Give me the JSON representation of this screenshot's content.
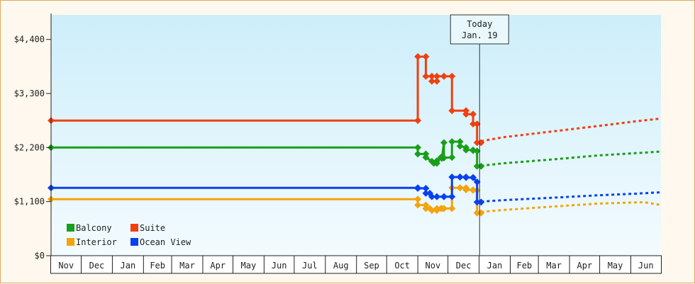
{
  "chart_data": {
    "type": "line",
    "title": "",
    "xlabel": "",
    "ylabel": "",
    "ylim": [
      0,
      4900
    ],
    "y_ticks": [
      {
        "value": 0,
        "label": "$0"
      },
      {
        "value": 1100,
        "label": "$1,100"
      },
      {
        "value": 2200,
        "label": "$2,200"
      },
      {
        "value": 3300,
        "label": "$3,300"
      },
      {
        "value": 4400,
        "label": "$4,400"
      }
    ],
    "x_months": [
      "Nov",
      "Dec",
      "Jan",
      "Feb",
      "Mar",
      "Apr",
      "May",
      "Jun",
      "Jul",
      "Aug",
      "Sep",
      "Oct",
      "Nov",
      "Dec",
      "Jan",
      "Feb",
      "Mar",
      "Apr",
      "May",
      "Jun"
    ],
    "month_units": [
      0,
      30,
      61,
      92,
      120,
      151,
      181,
      212,
      242,
      273,
      304,
      334,
      365,
      395,
      426,
      457,
      485,
      516,
      546,
      577,
      607
    ],
    "grid": false,
    "legend_position": "bottom-left",
    "today": {
      "day": 426.5,
      "line1": "Today",
      "line2": "Jan. 19"
    },
    "colors": {
      "plot_top": "#cdeefa",
      "plot_bottom": "#f3fbfe",
      "frame_bg": "#fff8ee",
      "frame_border": "#e0a860",
      "axis": "#222222"
    },
    "series": [
      {
        "name": "Balcony",
        "color": "#1a9e1a",
        "points": [
          [
            0,
            2200
          ],
          [
            365,
            2200
          ],
          [
            365,
            2070
          ],
          [
            373,
            2070
          ],
          [
            373,
            2000
          ],
          [
            379,
            1920
          ],
          [
            381,
            1880
          ],
          [
            384,
            1880
          ],
          [
            384,
            1930
          ],
          [
            388,
            2000
          ],
          [
            389,
            1980
          ],
          [
            391,
            2300
          ],
          [
            391,
            1990
          ],
          [
            399,
            2000
          ],
          [
            399,
            2320
          ],
          [
            407,
            2320
          ],
          [
            407,
            2230
          ],
          [
            413,
            2200
          ],
          [
            413,
            2150
          ],
          [
            420,
            2150
          ],
          [
            420,
            2140
          ],
          [
            424,
            2130
          ],
          [
            424,
            1820
          ],
          [
            428,
            1820
          ]
        ],
        "forecast": [
          [
            428,
            1830
          ],
          [
            450,
            1880
          ],
          [
            500,
            1960
          ],
          [
            545,
            2040
          ],
          [
            593,
            2100
          ],
          [
            607,
            2120
          ]
        ]
      },
      {
        "name": "Suite",
        "color": "#f04010",
        "points": [
          [
            0,
            2750
          ],
          [
            365,
            2750
          ],
          [
            365,
            4050
          ],
          [
            373,
            4050
          ],
          [
            373,
            3650
          ],
          [
            379,
            3650
          ],
          [
            379,
            3550
          ],
          [
            384,
            3550
          ],
          [
            384,
            3650
          ],
          [
            391,
            3650
          ],
          [
            391,
            3650
          ],
          [
            399,
            3650
          ],
          [
            399,
            2950
          ],
          [
            413,
            2950
          ],
          [
            413,
            2880
          ],
          [
            420,
            2880
          ],
          [
            420,
            2680
          ],
          [
            424,
            2680
          ],
          [
            424,
            2300
          ],
          [
            428,
            2300
          ]
        ],
        "forecast": [
          [
            428,
            2330
          ],
          [
            450,
            2410
          ],
          [
            500,
            2530
          ],
          [
            545,
            2640
          ],
          [
            580,
            2730
          ],
          [
            607,
            2790
          ]
        ]
      },
      {
        "name": "Interior",
        "color": "#f4a40a",
        "points": [
          [
            0,
            1150
          ],
          [
            365,
            1150
          ],
          [
            365,
            1030
          ],
          [
            373,
            1030
          ],
          [
            373,
            960
          ],
          [
            377,
            960
          ],
          [
            379,
            920
          ],
          [
            384,
            920
          ],
          [
            384,
            960
          ],
          [
            388,
            960
          ],
          [
            389,
            960
          ],
          [
            391,
            960
          ],
          [
            391,
            960
          ],
          [
            399,
            960
          ],
          [
            399,
            1380
          ],
          [
            407,
            1380
          ],
          [
            407,
            1380
          ],
          [
            413,
            1380
          ],
          [
            413,
            1340
          ],
          [
            420,
            1340
          ],
          [
            420,
            1330
          ],
          [
            424,
            1330
          ],
          [
            424,
            870
          ],
          [
            428,
            870
          ]
        ],
        "forecast": [
          [
            428,
            890
          ],
          [
            450,
            930
          ],
          [
            500,
            1000
          ],
          [
            545,
            1060
          ],
          [
            590,
            1090
          ],
          [
            607,
            1030
          ]
        ]
      },
      {
        "name": "Ocean View",
        "color": "#0a40f0",
        "points": [
          [
            0,
            1380
          ],
          [
            365,
            1380
          ],
          [
            365,
            1370
          ],
          [
            373,
            1370
          ],
          [
            373,
            1270
          ],
          [
            377,
            1270
          ],
          [
            379,
            1200
          ],
          [
            384,
            1200
          ],
          [
            384,
            1200
          ],
          [
            391,
            1200
          ],
          [
            391,
            1200
          ],
          [
            399,
            1200
          ],
          [
            399,
            1600
          ],
          [
            407,
            1600
          ],
          [
            407,
            1600
          ],
          [
            413,
            1600
          ],
          [
            413,
            1590
          ],
          [
            420,
            1590
          ],
          [
            420,
            1590
          ],
          [
            424,
            1500
          ],
          [
            424,
            1090
          ],
          [
            428,
            1090
          ]
        ],
        "forecast": [
          [
            428,
            1100
          ],
          [
            450,
            1130
          ],
          [
            500,
            1180
          ],
          [
            545,
            1230
          ],
          [
            580,
            1260
          ],
          [
            607,
            1290
          ]
        ]
      }
    ],
    "legend": [
      {
        "label": "Balcony",
        "color": "#1a9e1a"
      },
      {
        "label": "Suite",
        "color": "#f04010"
      },
      {
        "label": "Interior",
        "color": "#f4a40a"
      },
      {
        "label": "Ocean View",
        "color": "#0a40f0"
      }
    ]
  }
}
